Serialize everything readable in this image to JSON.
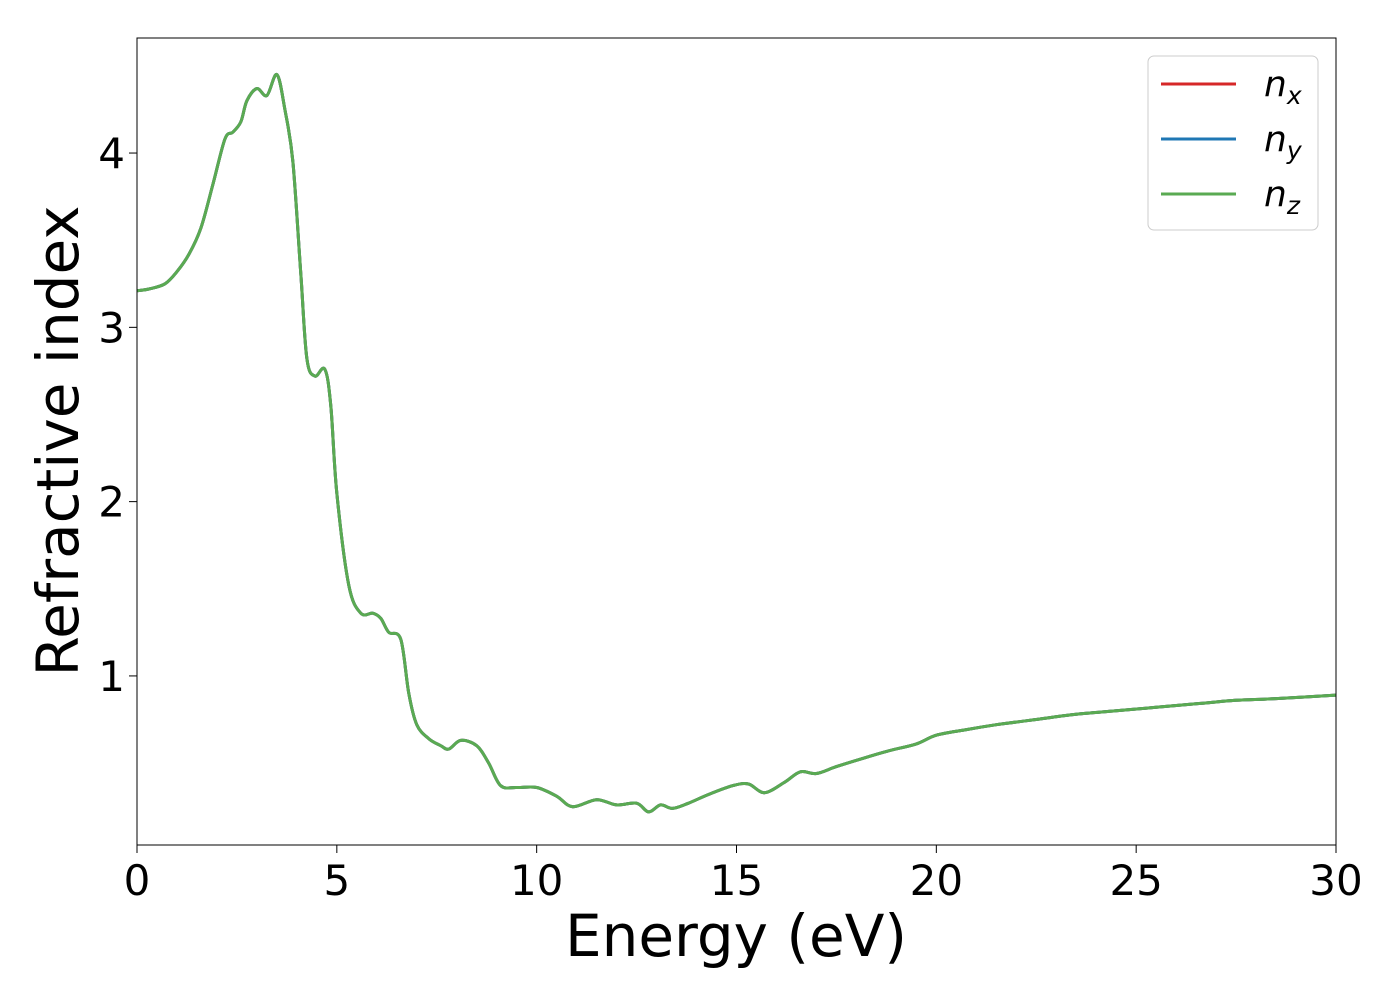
{
  "chart_data": {
    "type": "line",
    "title": "",
    "xlabel": "Energy (eV)",
    "ylabel": "Refractive index",
    "xlim": [
      0,
      30
    ],
    "ylim": [
      0.03,
      4.66
    ],
    "xticks": [
      0,
      5,
      10,
      15,
      20,
      25,
      30
    ],
    "yticks": [
      1,
      2,
      3,
      4
    ],
    "grid": false,
    "legend_position": "top-right",
    "x": [
      0,
      0.3,
      0.7,
      1.0,
      1.3,
      1.6,
      1.9,
      2.2,
      2.4,
      2.6,
      2.75,
      3.0,
      3.25,
      3.5,
      3.7,
      3.9,
      4.1,
      4.25,
      4.45,
      4.7,
      4.85,
      5.0,
      5.3,
      5.6,
      5.9,
      6.1,
      6.3,
      6.6,
      6.8,
      7.0,
      7.3,
      7.6,
      7.8,
      8.1,
      8.5,
      8.8,
      9.1,
      9.5,
      10.0,
      10.5,
      10.9,
      11.5,
      12.0,
      12.5,
      12.8,
      13.1,
      13.4,
      13.8,
      14.3,
      14.9,
      15.3,
      15.7,
      16.2,
      16.6,
      17.0,
      17.5,
      18.2,
      18.8,
      19.5,
      20.0,
      20.7,
      21.5,
      22.5,
      23.5,
      24.5,
      25.5,
      26.5,
      27.5,
      28.5,
      30.0
    ],
    "series": [
      {
        "name": "n_x",
        "color": "#d62728",
        "values": [
          3.21,
          3.22,
          3.25,
          3.32,
          3.42,
          3.57,
          3.82,
          4.08,
          4.12,
          4.18,
          4.3,
          4.37,
          4.33,
          4.45,
          4.25,
          3.95,
          3.3,
          2.82,
          2.72,
          2.76,
          2.55,
          2.05,
          1.52,
          1.36,
          1.36,
          1.33,
          1.25,
          1.21,
          0.9,
          0.72,
          0.64,
          0.6,
          0.58,
          0.63,
          0.6,
          0.5,
          0.37,
          0.36,
          0.36,
          0.31,
          0.25,
          0.29,
          0.26,
          0.27,
          0.22,
          0.26,
          0.24,
          0.27,
          0.32,
          0.37,
          0.38,
          0.33,
          0.39,
          0.45,
          0.44,
          0.48,
          0.53,
          0.57,
          0.61,
          0.66,
          0.69,
          0.72,
          0.75,
          0.78,
          0.8,
          0.82,
          0.84,
          0.86,
          0.87,
          0.89
        ]
      },
      {
        "name": "n_y",
        "color": "#1f77b4",
        "values": [
          3.21,
          3.22,
          3.25,
          3.32,
          3.42,
          3.57,
          3.82,
          4.08,
          4.12,
          4.18,
          4.3,
          4.37,
          4.33,
          4.45,
          4.25,
          3.95,
          3.3,
          2.82,
          2.72,
          2.76,
          2.55,
          2.05,
          1.52,
          1.36,
          1.36,
          1.33,
          1.25,
          1.21,
          0.9,
          0.72,
          0.64,
          0.6,
          0.58,
          0.63,
          0.6,
          0.5,
          0.37,
          0.36,
          0.36,
          0.31,
          0.25,
          0.29,
          0.26,
          0.27,
          0.22,
          0.26,
          0.24,
          0.27,
          0.32,
          0.37,
          0.38,
          0.33,
          0.39,
          0.45,
          0.44,
          0.48,
          0.53,
          0.57,
          0.61,
          0.66,
          0.69,
          0.72,
          0.75,
          0.78,
          0.8,
          0.82,
          0.84,
          0.86,
          0.87,
          0.89
        ]
      },
      {
        "name": "n_z",
        "color": "#5aaa52",
        "values": [
          3.21,
          3.22,
          3.25,
          3.32,
          3.42,
          3.57,
          3.82,
          4.08,
          4.12,
          4.18,
          4.3,
          4.37,
          4.33,
          4.45,
          4.25,
          3.95,
          3.3,
          2.82,
          2.72,
          2.76,
          2.55,
          2.05,
          1.52,
          1.36,
          1.36,
          1.33,
          1.25,
          1.21,
          0.9,
          0.72,
          0.64,
          0.6,
          0.58,
          0.63,
          0.6,
          0.5,
          0.37,
          0.36,
          0.36,
          0.31,
          0.25,
          0.29,
          0.26,
          0.27,
          0.22,
          0.26,
          0.24,
          0.27,
          0.32,
          0.37,
          0.38,
          0.33,
          0.39,
          0.45,
          0.44,
          0.48,
          0.53,
          0.57,
          0.61,
          0.66,
          0.69,
          0.72,
          0.75,
          0.78,
          0.8,
          0.82,
          0.84,
          0.86,
          0.87,
          0.89
        ]
      }
    ],
    "legend": [
      {
        "base": "n",
        "sub": "x"
      },
      {
        "base": "n",
        "sub": "y"
      },
      {
        "base": "n",
        "sub": "z"
      }
    ]
  }
}
